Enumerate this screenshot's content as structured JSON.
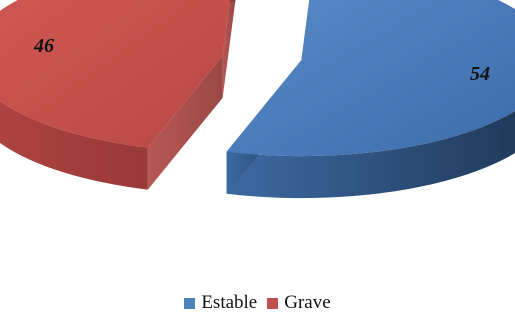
{
  "chart_data": {
    "type": "pie",
    "style": "3d-exploded",
    "title": "",
    "categories": [
      "Estable",
      "Grave"
    ],
    "values": [
      54,
      46
    ],
    "data_labels": [
      "54",
      "46"
    ],
    "colors": [
      "#4f81bd",
      "#c0504d"
    ],
    "legend_position": "bottom"
  }
}
